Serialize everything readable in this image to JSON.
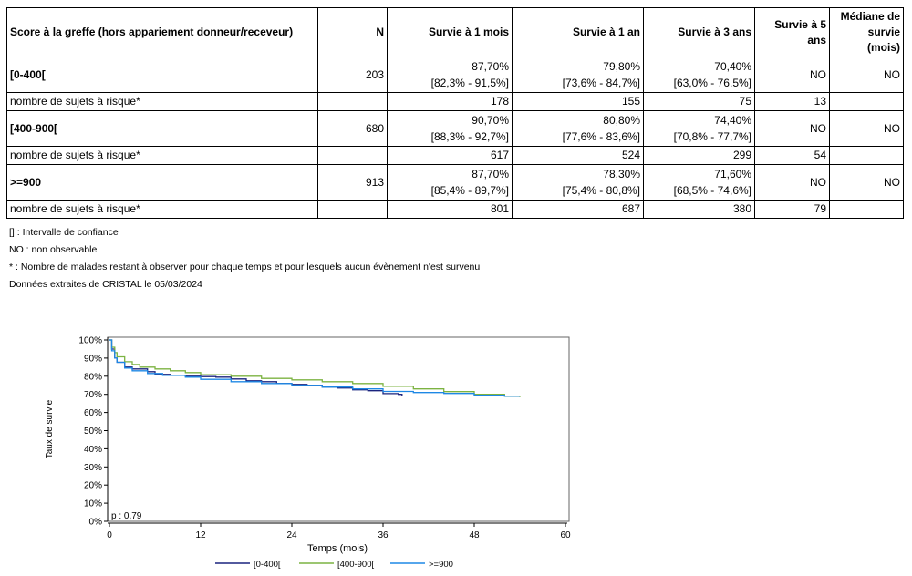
{
  "table": {
    "headers": {
      "score": "Score à la greffe (hors appariement donneur/receveur)",
      "n": "N",
      "m1": "Survie à 1 mois",
      "y1": "Survie à 1 an",
      "y3": "Survie à 3 ans",
      "y5": "Survie à 5 ans",
      "median": "Médiane de survie (mois)"
    },
    "groups": [
      {
        "label": "[0-400[",
        "n": "203",
        "m1": "87,70%",
        "m1_ci": "[82,3% - 91,5%]",
        "y1": "79,80%",
        "y1_ci": "[73,6% - 84,7%]",
        "y3": "70,40%",
        "y3_ci": "[63,0% - 76,5%]",
        "y5": "NO",
        "median": "NO",
        "risk_label": "nombre de sujets à risque*",
        "risk": {
          "m1": "178",
          "y1": "155",
          "y3": "75",
          "y5": "13"
        }
      },
      {
        "label": "[400-900[",
        "n": "680",
        "m1": "90,70%",
        "m1_ci": "[88,3% - 92,7%]",
        "y1": "80,80%",
        "y1_ci": "[77,6% - 83,6%]",
        "y3": "74,40%",
        "y3_ci": "[70,8% - 77,7%]",
        "y5": "NO",
        "median": "NO",
        "risk_label": "nombre de sujets à risque*",
        "risk": {
          "m1": "617",
          "y1": "524",
          "y3": "299",
          "y5": "54"
        }
      },
      {
        "label": ">=900",
        "n": "913",
        "m1": "87,70%",
        "m1_ci": "[85,4% - 89,7%]",
        "y1": "78,30%",
        "y1_ci": "[75,4% - 80,8%]",
        "y3": "71,60%",
        "y3_ci": "[68,5% - 74,6%]",
        "y5": "NO",
        "median": "NO",
        "risk_label": "nombre de sujets à risque*",
        "risk": {
          "m1": "801",
          "y1": "687",
          "y3": "380",
          "y5": "79"
        }
      }
    ]
  },
  "notes": [
    "[] : Intervalle de confiance",
    "NO : non observable",
    "* : Nombre de malades restant à observer pour chaque temps et pour lesquels aucun évènement n'est survenu",
    "Données extraites de CRISTAL le 05/03/2024"
  ],
  "chart_data": {
    "type": "line",
    "title": "",
    "xlabel": "Temps (mois)",
    "ylabel": "Taux de survie",
    "xlim": [
      0,
      60
    ],
    "ylim": [
      0,
      100
    ],
    "x_ticks": [
      "0",
      "12",
      "24",
      "36",
      "48",
      "60"
    ],
    "y_ticks": [
      "0%",
      "10%",
      "20%",
      "30%",
      "40%",
      "50%",
      "60%",
      "70%",
      "80%",
      "90%",
      "100%"
    ],
    "annotation": "p : 0,79",
    "legend_position": "bottom",
    "grid": false,
    "series": [
      {
        "name": "[0-400[",
        "color": "#1a237e",
        "points": [
          [
            0,
            100
          ],
          [
            0.3,
            95
          ],
          [
            0.7,
            90
          ],
          [
            1,
            87.7
          ],
          [
            2,
            85
          ],
          [
            3,
            84
          ],
          [
            5,
            82.5
          ],
          [
            6,
            81
          ],
          [
            8,
            80.5
          ],
          [
            10,
            80
          ],
          [
            12,
            79.8
          ],
          [
            14,
            79.5
          ],
          [
            16,
            78.5
          ],
          [
            18,
            77.5
          ],
          [
            20,
            77
          ],
          [
            22,
            76
          ],
          [
            24,
            75.5
          ],
          [
            26,
            75
          ],
          [
            28,
            74
          ],
          [
            30,
            73.5
          ],
          [
            32,
            72.5
          ],
          [
            34,
            72
          ],
          [
            36,
            70.4
          ],
          [
            38,
            70
          ],
          [
            38.5,
            69
          ]
        ]
      },
      {
        "name": "[400-900[",
        "color": "#7cb342",
        "points": [
          [
            0,
            100
          ],
          [
            0.3,
            96
          ],
          [
            0.7,
            93
          ],
          [
            1,
            90.7
          ],
          [
            2,
            88
          ],
          [
            3,
            86.5
          ],
          [
            4,
            85
          ],
          [
            6,
            84
          ],
          [
            8,
            83
          ],
          [
            10,
            82
          ],
          [
            12,
            80.8
          ],
          [
            16,
            80
          ],
          [
            20,
            78.8
          ],
          [
            24,
            78
          ],
          [
            28,
            77
          ],
          [
            32,
            76
          ],
          [
            36,
            74.4
          ],
          [
            40,
            73
          ],
          [
            44,
            71.5
          ],
          [
            48,
            70
          ],
          [
            52,
            69
          ],
          [
            54,
            68.5
          ]
        ]
      },
      {
        "name": ">=900",
        "color": "#1e88e5",
        "points": [
          [
            0,
            100
          ],
          [
            0.3,
            94
          ],
          [
            0.7,
            90
          ],
          [
            1,
            87.7
          ],
          [
            2,
            84.5
          ],
          [
            3,
            83
          ],
          [
            5,
            81.5
          ],
          [
            7,
            80.5
          ],
          [
            10,
            79.5
          ],
          [
            12,
            78.3
          ],
          [
            16,
            77
          ],
          [
            20,
            76
          ],
          [
            24,
            75
          ],
          [
            28,
            74
          ],
          [
            32,
            73
          ],
          [
            36,
            71.6
          ],
          [
            40,
            71
          ],
          [
            44,
            70.5
          ],
          [
            48,
            69.5
          ],
          [
            52,
            69
          ],
          [
            54,
            69
          ]
        ]
      }
    ]
  }
}
